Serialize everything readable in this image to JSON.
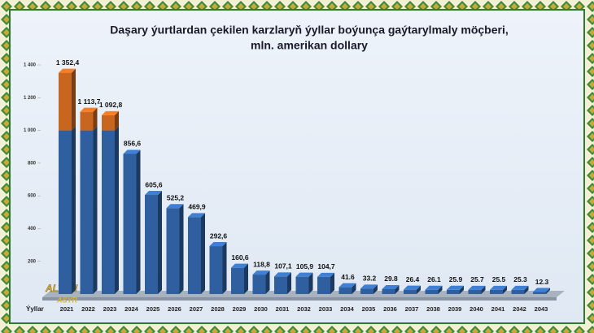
{
  "chart_data": {
    "type": "bar3d",
    "title": "Daşary ýurtlardan çekilen karzlaryň ýyllar boýunça gaýtarylmaly möçberi,",
    "subtitle": "mln. amerikan dollary",
    "x_label": "Ýyllar",
    "logo": [
      "ALTYN",
      "ASYR"
    ],
    "categories": [
      "2021",
      "2022",
      "2023",
      "2024",
      "2025",
      "2026",
      "2027",
      "2028",
      "2029",
      "2030",
      "2031",
      "2032",
      "2033",
      "2034",
      "2035",
      "2036",
      "2037",
      "2038",
      "2039",
      "2040",
      "2041",
      "2042",
      "2043"
    ],
    "values": [
      1352.4,
      1113.7,
      1092.8,
      856.6,
      605.6,
      525.2,
      469.9,
      292.6,
      160.6,
      118.8,
      107.1,
      105.9,
      104.7,
      41.6,
      33.2,
      29.8,
      26.4,
      26.1,
      25.9,
      25.7,
      25.5,
      25.3,
      12.3
    ],
    "value_labels": [
      "1 352,4",
      "1 113,7",
      "1 092,8",
      "856,6",
      "605,6",
      "525,2",
      "469,9",
      "292,6",
      "160,6",
      "118,8",
      "107,1",
      "105,9",
      "104,7",
      "41.6",
      "33.2",
      "29.8",
      "26.4",
      "26.1",
      "25.9",
      "25.7",
      "25.5",
      "25.3",
      "12.3"
    ],
    "color": "#2f5f9e",
    "color_above": "#c8651e",
    "color_threshold": 1000,
    "ylim": [
      0,
      1400
    ],
    "yticks": [
      {
        "value": 1400,
        "label": "1 400"
      },
      {
        "value": 1200,
        "label": "1 200"
      },
      {
        "value": 1000,
        "label": "1 000"
      },
      800,
      600,
      400,
      200
    ],
    "grid": false
  }
}
